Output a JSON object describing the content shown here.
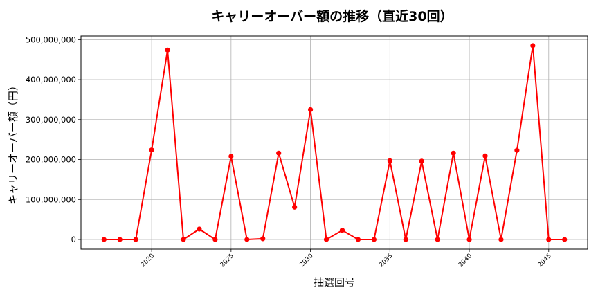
{
  "chart_data": {
    "type": "line",
    "title": "キャリーオーバー額の推移（直近30回）",
    "xlabel": "抽選回号",
    "ylabel": "キャリーオーバー額（円）",
    "x": [
      2017,
      2018,
      2019,
      2020,
      2021,
      2022,
      2023,
      2024,
      2025,
      2026,
      2027,
      2028,
      2029,
      2030,
      2031,
      2032,
      2033,
      2034,
      2035,
      2036,
      2037,
      2038,
      2039,
      2040,
      2041,
      2042,
      2043,
      2044,
      2045,
      2046
    ],
    "series": [
      {
        "name": "キャリーオーバー額",
        "color": "#ff0000",
        "marker": "circle",
        "values": [
          0,
          0,
          0,
          224000000,
          474000000,
          0,
          26000000,
          0,
          208000000,
          0,
          2000000,
          216000000,
          81000000,
          325000000,
          0,
          23000000,
          0,
          0,
          197000000,
          0,
          196000000,
          0,
          216000000,
          0,
          209000000,
          0,
          223000000,
          485000000,
          0,
          0
        ]
      }
    ],
    "xlim": [
      2015.55,
      2047.45
    ],
    "ylim": [
      -24250000,
      509250000
    ],
    "xticks": [
      2020,
      2025,
      2030,
      2035,
      2040,
      2045
    ],
    "xtick_labels": [
      "2020",
      "2025",
      "2030",
      "2035",
      "2040",
      "2045"
    ],
    "yticks": [
      0,
      100000000,
      200000000,
      300000000,
      400000000,
      500000000
    ],
    "ytick_labels": [
      "0",
      "100,000,000",
      "200,000,000",
      "300,000,000",
      "400,000,000",
      "500,000,000"
    ],
    "grid": true,
    "legend": null
  }
}
